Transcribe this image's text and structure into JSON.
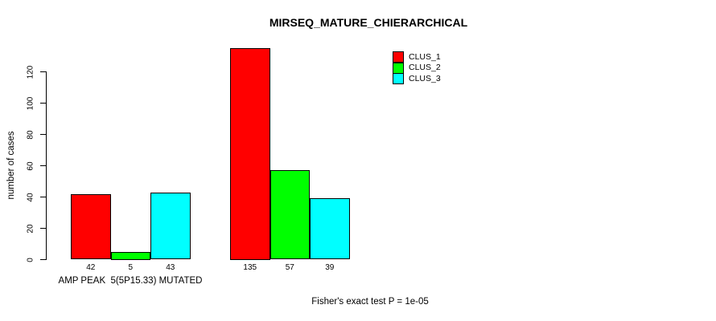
{
  "title": "MIRSEQ_MATURE_CHIERARCHICAL",
  "annotation": "Fisher's exact test P = 1e-05",
  "chart_data": {
    "type": "bar",
    "title": "MIRSEQ_MATURE_CHIERARCHICAL",
    "ylabel": "number of cases",
    "xlabel": "AMP PEAK  5(5P15.33) MUTATED",
    "categories": [
      "AMP PEAK  5(5P15.33) MUTATED",
      ""
    ],
    "series": [
      {
        "name": "CLUS_1",
        "color": "#ff0000",
        "values": [
          42,
          135
        ]
      },
      {
        "name": "CLUS_2",
        "color": "#00ff00",
        "values": [
          5,
          57
        ]
      },
      {
        "name": "CLUS_3",
        "color": "#00ffff",
        "values": [
          43,
          39
        ]
      }
    ],
    "bar_value_labels": [
      [
        42,
        5,
        43
      ],
      [
        135,
        57,
        39
      ]
    ],
    "yticks": [
      0,
      20,
      40,
      60,
      80,
      100,
      120
    ],
    "ylim": [
      0,
      135
    ],
    "grid": false,
    "legend_position": "top-right",
    "annotation": "Fisher's exact test P = 1e-05"
  }
}
